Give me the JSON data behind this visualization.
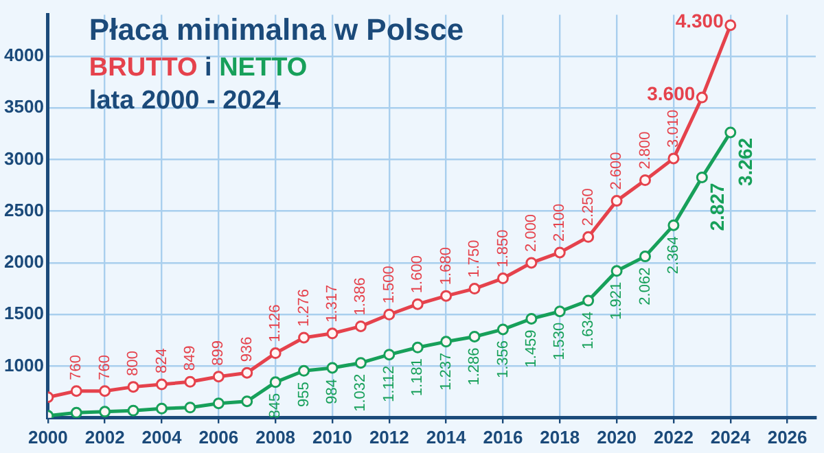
{
  "chart_data": {
    "type": "line",
    "title": "Płaca minimalna w Polsce",
    "subtitle": "lata 2000 - 2024",
    "annotations": [
      "i"
    ],
    "x": [
      2000,
      2001,
      2002,
      2003,
      2004,
      2005,
      2006,
      2007,
      2008,
      2009,
      2010,
      2011,
      2012,
      2013,
      2014,
      2015,
      2016,
      2017,
      2018,
      2019,
      2020,
      2021,
      2022,
      2023,
      2024
    ],
    "series": [
      {
        "name": "BRUTTO",
        "color": "#e5424c",
        "values": [
          700,
          760,
          760,
          800,
          824,
          849,
          899,
          936,
          1126,
          1276,
          1317,
          1386,
          1500,
          1600,
          1680,
          1750,
          1850,
          2000,
          2100,
          2250,
          2600,
          2800,
          3010,
          3600,
          4300
        ],
        "value_labels": [
          null,
          "760",
          "760",
          "800",
          "824",
          "849",
          "899",
          "936",
          "1.126",
          "1.276",
          "1.317",
          "1.386",
          "1.500",
          "1.600",
          "1.680",
          "1.750",
          "1.850",
          "2.000",
          "2.100",
          "2.250",
          "2.600",
          "2.800",
          "3.010",
          "3.600",
          "4.300"
        ]
      },
      {
        "name": "NETTO",
        "color": "#17a05a",
        "values": [
          520,
          550,
          560,
          570,
          590,
          600,
          640,
          660,
          845,
          955,
          984,
          1032,
          1112,
          1181,
          1237,
          1286,
          1356,
          1459,
          1530,
          1634,
          1921,
          2062,
          2364,
          2827,
          3262
        ],
        "value_labels": [
          null,
          null,
          null,
          null,
          null,
          null,
          null,
          null,
          "845",
          "955",
          "984",
          "1.032",
          "1.112",
          "1.181",
          "1.237",
          "1.286",
          "1.356",
          "1.459",
          "1.530",
          "1.634",
          "1.921",
          "2.062",
          "2.364",
          "2.827",
          "3.262"
        ]
      }
    ],
    "xlim": [
      2000,
      2027
    ],
    "xticks": [
      2000,
      2002,
      2004,
      2006,
      2008,
      2010,
      2012,
      2014,
      2016,
      2018,
      2020,
      2022,
      2024,
      2026
    ],
    "ylim": [
      500,
      4400
    ],
    "yticks": [
      1000,
      1500,
      2000,
      2500,
      3000,
      3500,
      4000
    ],
    "grid": true,
    "legend": "top left",
    "marker": "circle",
    "line_style": "solid"
  }
}
